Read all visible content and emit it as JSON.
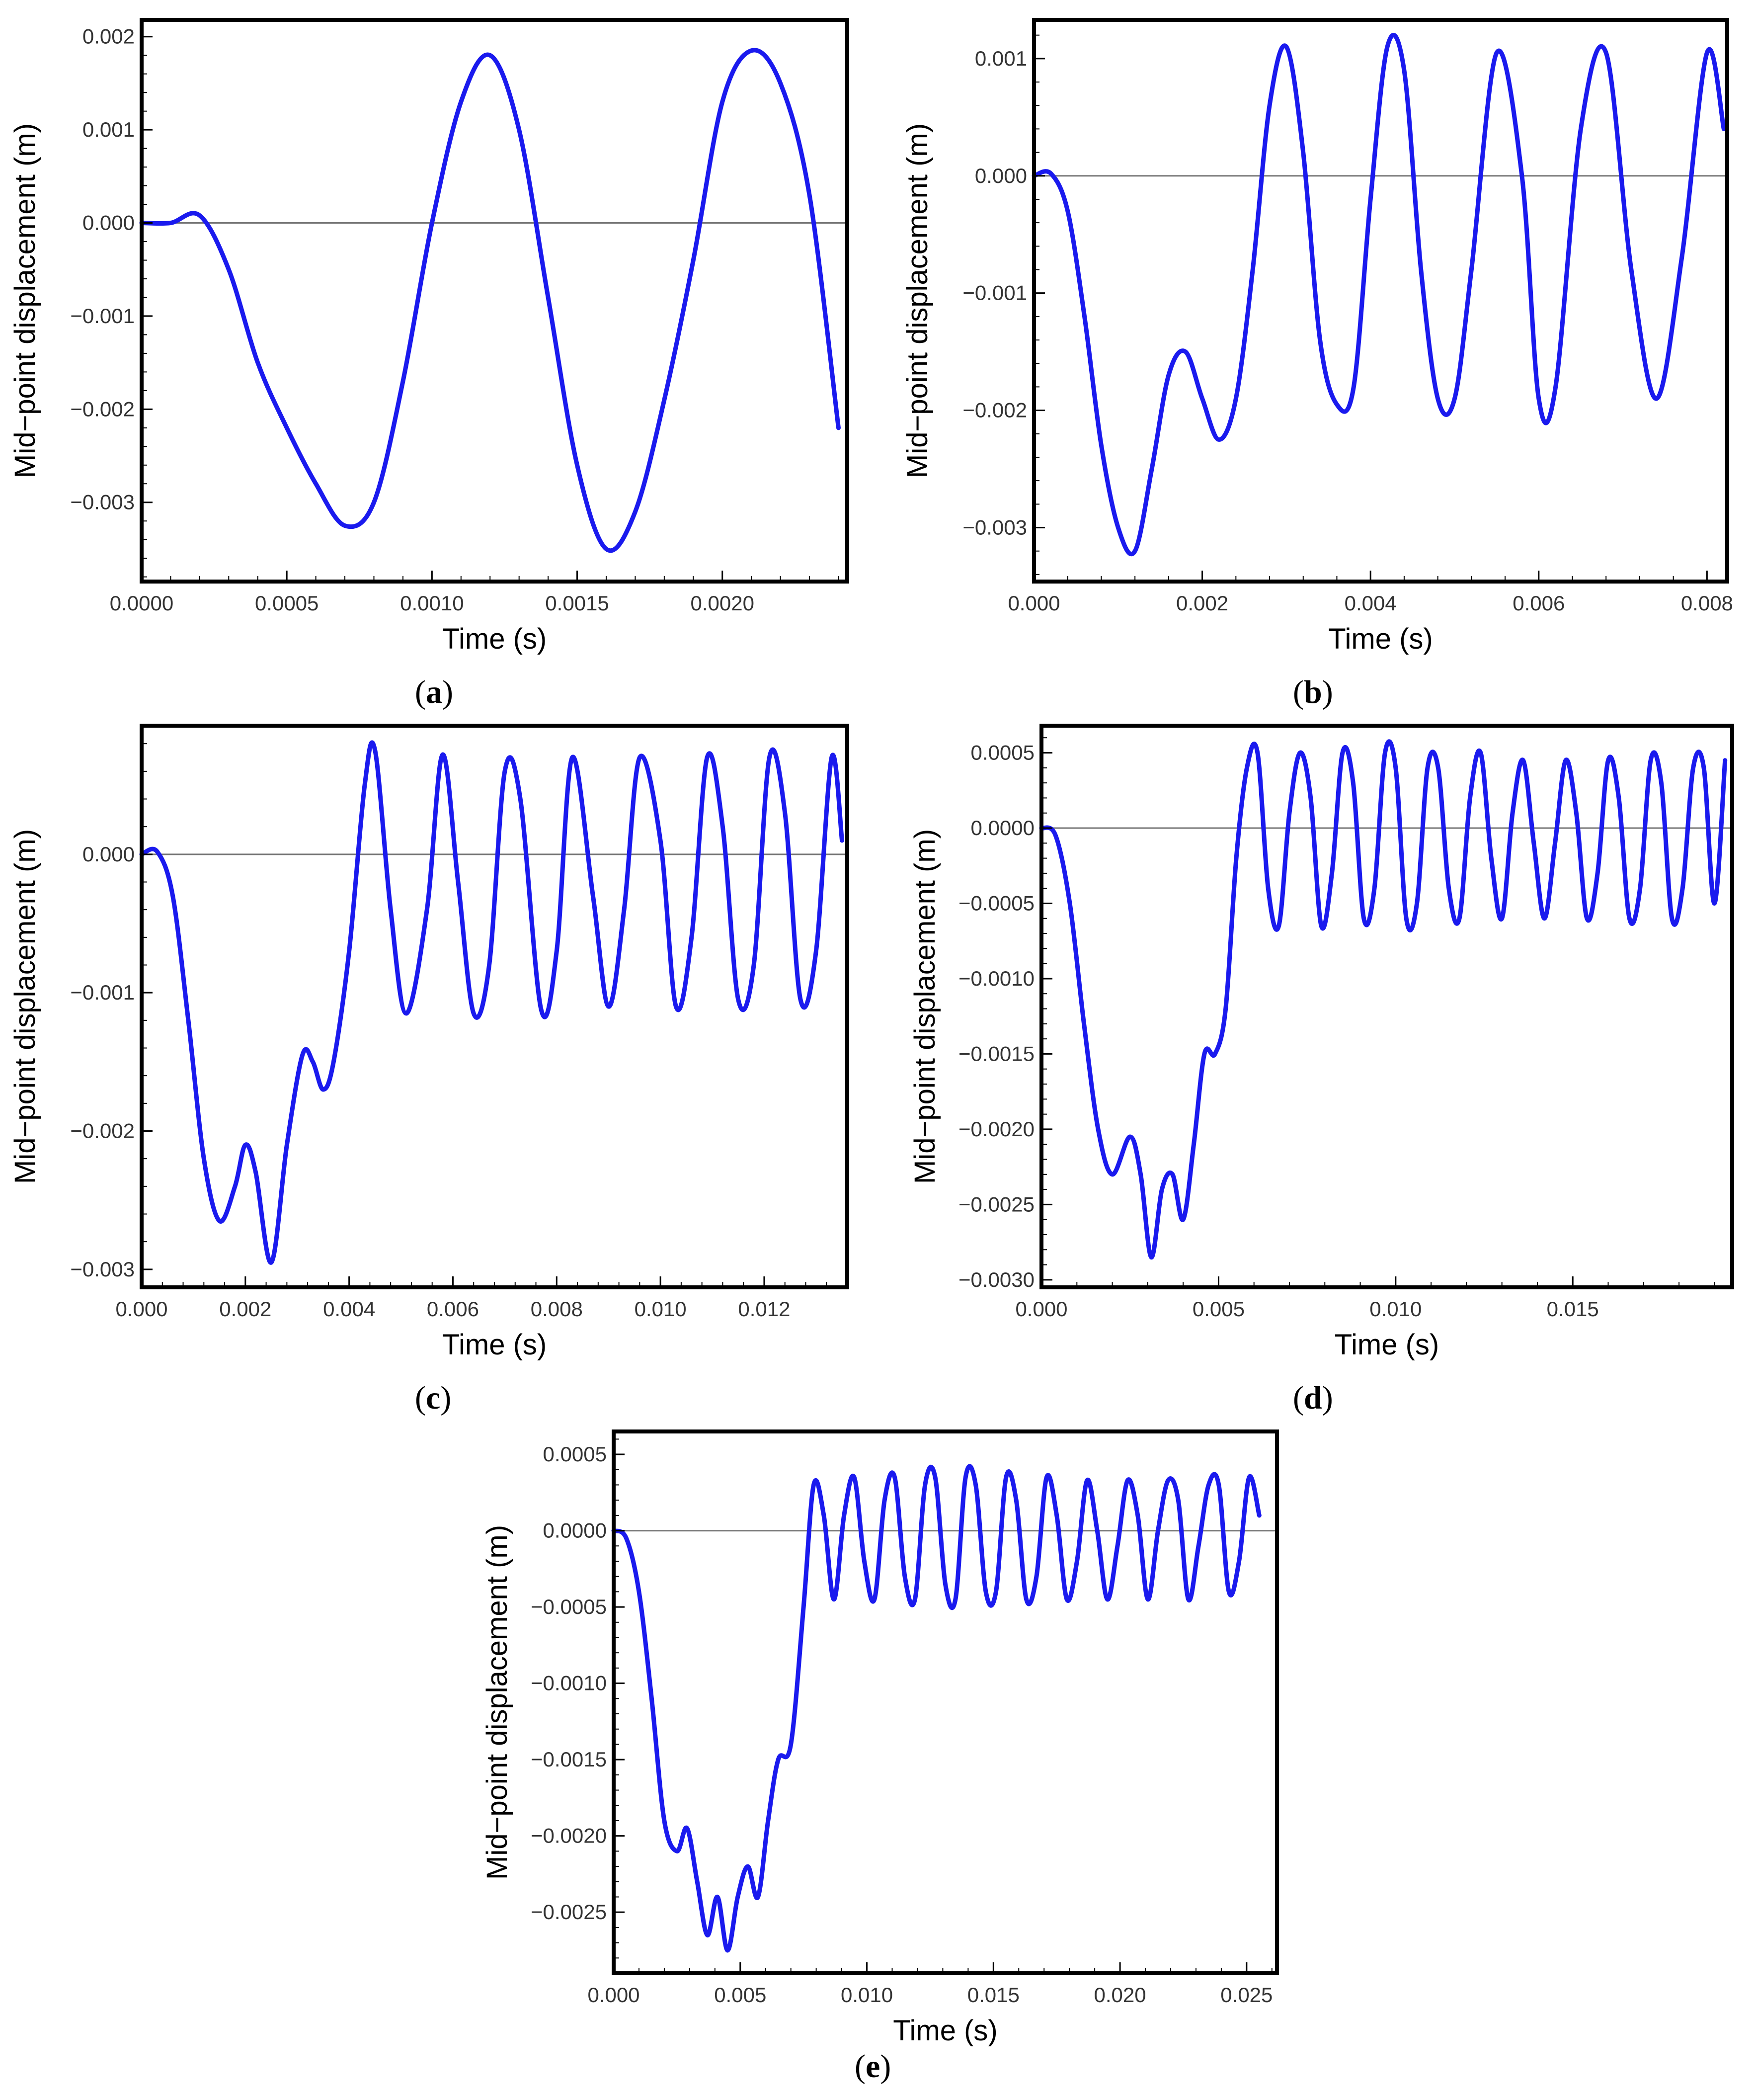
{
  "chart_data": [
    {
      "type": "line",
      "caption": "a",
      "xlabel": "Time (s)",
      "ylabel": "Mid−point displacement (m)",
      "xlim": [
        0,
        0.00243
      ],
      "ylim": [
        -0.00385,
        0.00218
      ],
      "x_ticks": [
        {
          "v": 0,
          "label": "0.0000"
        },
        {
          "v": 0.0005,
          "label": "0.0005"
        },
        {
          "v": 0.001,
          "label": "0.0010"
        },
        {
          "v": 0.0015,
          "label": "0.0015"
        },
        {
          "v": 0.002,
          "label": "0.0020"
        }
      ],
      "y_ticks": [
        {
          "v": 0.002,
          "label": "0.002"
        },
        {
          "v": 0.001,
          "label": "0.001"
        },
        {
          "v": 0.0,
          "label": "0.000"
        },
        {
          "v": -0.001,
          "label": "−0.001"
        },
        {
          "v": -0.002,
          "label": "−0.002"
        },
        {
          "v": -0.003,
          "label": "−0.003"
        }
      ],
      "series": [
        {
          "color": "#1a1aee",
          "x": [
            0,
            0.0001,
            0.0002,
            0.0003,
            0.0004,
            0.0005,
            0.0006,
            0.0007,
            0.0008,
            0.0009,
            0.001,
            0.0011,
            0.0012,
            0.0013,
            0.0014,
            0.0015,
            0.0016,
            0.0017,
            0.0018,
            0.0019,
            0.002,
            0.0021,
            0.0022,
            0.0023,
            0.0024
          ],
          "y": [
            0,
            0,
            8e-05,
            -0.0005,
            -0.0015,
            -0.0022,
            -0.0028,
            -0.00325,
            -0.003,
            -0.0017,
            0,
            0.0013,
            0.0018,
            0.001,
            -0.0008,
            -0.0026,
            -0.0035,
            -0.0031,
            -0.0019,
            -0.0004,
            0.0013,
            0.00185,
            0.0015,
            0.0003,
            -0.0022
          ]
        }
      ]
    },
    {
      "type": "line",
      "caption": "b",
      "xlabel": "Time (s)",
      "ylabel": "Mid−point displacement (m)",
      "xlim": [
        0,
        0.00824
      ],
      "ylim": [
        -0.00346,
        0.00133
      ],
      "x_ticks": [
        {
          "v": 0,
          "label": "0.000"
        },
        {
          "v": 0.002,
          "label": "0.002"
        },
        {
          "v": 0.004,
          "label": "0.004"
        },
        {
          "v": 0.006,
          "label": "0.006"
        },
        {
          "v": 0.008,
          "label": "0.008"
        }
      ],
      "y_ticks": [
        {
          "v": 0.001,
          "label": "0.001"
        },
        {
          "v": 0.0,
          "label": "0.000"
        },
        {
          "v": -0.001,
          "label": "−0.001"
        },
        {
          "v": -0.002,
          "label": "−0.002"
        },
        {
          "v": -0.003,
          "label": "−0.003"
        }
      ],
      "series": [
        {
          "color": "#1a1aee",
          "x": [
            0,
            0.0002,
            0.0004,
            0.0006,
            0.0008,
            0.001,
            0.0012,
            0.0014,
            0.0016,
            0.0018,
            0.002,
            0.0022,
            0.0024,
            0.0026,
            0.0028,
            0.003,
            0.0032,
            0.0034,
            0.0036,
            0.0038,
            0.004,
            0.0042,
            0.0044,
            0.0046,
            0.0048,
            0.005,
            0.0052,
            0.0055,
            0.0058,
            0.006,
            0.0062,
            0.0065,
            0.0068,
            0.0071,
            0.0074,
            0.0077,
            0.008,
            0.0082
          ],
          "y": [
            0,
            2e-05,
            -0.0003,
            -0.0012,
            -0.0023,
            -0.003,
            -0.0032,
            -0.0025,
            -0.0017,
            -0.0015,
            -0.0019,
            -0.00225,
            -0.0019,
            -0.0008,
            0.0006,
            0.0011,
            0.0002,
            -0.0014,
            -0.00195,
            -0.0018,
            -0.0002,
            0.0011,
            0.0009,
            -0.0008,
            -0.0019,
            -0.0019,
            -0.0008,
            0.00105,
            0.0,
            -0.0019,
            -0.0018,
            0.0004,
            0.00105,
            -0.0008,
            -0.0019,
            -0.0007,
            0.00105,
            0.0004
          ]
        }
      ]
    },
    {
      "type": "line",
      "caption": "c",
      "xlabel": "Time (s)",
      "ylabel": "Mid−point displacement (m)",
      "xlim": [
        0,
        0.0136
      ],
      "ylim": [
        -0.00313,
        0.00093
      ],
      "x_ticks": [
        {
          "v": 0,
          "label": "0.000"
        },
        {
          "v": 0.002,
          "label": "0.002"
        },
        {
          "v": 0.004,
          "label": "0.004"
        },
        {
          "v": 0.006,
          "label": "0.006"
        },
        {
          "v": 0.008,
          "label": "0.008"
        },
        {
          "v": 0.01,
          "label": "0.010"
        },
        {
          "v": 0.012,
          "label": "0.012"
        }
      ],
      "y_ticks": [
        {
          "v": 0.0,
          "label": "0.000"
        },
        {
          "v": -0.001,
          "label": "−0.001"
        },
        {
          "v": -0.002,
          "label": "−0.002"
        },
        {
          "v": -0.003,
          "label": "−0.003"
        }
      ],
      "series": [
        {
          "color": "#1a1aee",
          "x": [
            0,
            0.0003,
            0.0006,
            0.0009,
            0.0012,
            0.0015,
            0.0018,
            0.002,
            0.0022,
            0.0025,
            0.0028,
            0.0031,
            0.0033,
            0.0035,
            0.0037,
            0.004,
            0.0043,
            0.0045,
            0.0048,
            0.0051,
            0.0055,
            0.0058,
            0.0061,
            0.0064,
            0.0067,
            0.007,
            0.0073,
            0.0077,
            0.008,
            0.0083,
            0.0087,
            0.009,
            0.0093,
            0.0096,
            0.01,
            0.0103,
            0.0106,
            0.0109,
            0.0112,
            0.0115,
            0.0118,
            0.0121,
            0.0124,
            0.0127,
            0.013,
            0.0133,
            0.0135
          ],
          "y": [
            0,
            2e-05,
            -0.0003,
            -0.0012,
            -0.0022,
            -0.00265,
            -0.0024,
            -0.0021,
            -0.0023,
            -0.00295,
            -0.0021,
            -0.00145,
            -0.0015,
            -0.0017,
            -0.0015,
            -0.0007,
            0.0005,
            0.00075,
            -0.0004,
            -0.00115,
            -0.0004,
            0.00072,
            -0.0002,
            -0.00115,
            -0.0008,
            0.0006,
            0.0004,
            -0.00112,
            -0.0007,
            0.0007,
            -0.0003,
            -0.0011,
            -0.0004,
            0.0007,
            0.0001,
            -0.0011,
            -0.0006,
            0.0007,
            0.0002,
            -0.00105,
            -0.0008,
            0.0007,
            0.0003,
            -0.00105,
            -0.0007,
            0.0007,
            0.0001
          ]
        }
      ]
    },
    {
      "type": "line",
      "caption": "d",
      "xlabel": "Time (s)",
      "ylabel": "Mid−point displacement (m)",
      "xlim": [
        0,
        0.0195
      ],
      "ylim": [
        -0.00305,
        0.00068
      ],
      "x_ticks": [
        {
          "v": 0,
          "label": "0.000"
        },
        {
          "v": 0.005,
          "label": "0.005"
        },
        {
          "v": 0.01,
          "label": "0.010"
        },
        {
          "v": 0.015,
          "label": "0.015"
        }
      ],
      "y_ticks": [
        {
          "v": 0.0005,
          "label": "0.0005"
        },
        {
          "v": 0.0,
          "label": "0.0000"
        },
        {
          "v": -0.0005,
          "label": "−0.0005"
        },
        {
          "v": -0.001,
          "label": "−0.0010"
        },
        {
          "v": -0.0015,
          "label": "−0.0015"
        },
        {
          "v": -0.002,
          "label": "−0.0020"
        },
        {
          "v": -0.0025,
          "label": "−0.0025"
        },
        {
          "v": -0.003,
          "label": "−0.0030"
        }
      ],
      "series": [
        {
          "color": "#1a1aee",
          "x": [
            0,
            0.0004,
            0.0008,
            0.0012,
            0.0016,
            0.002,
            0.0025,
            0.0028,
            0.0031,
            0.0034,
            0.0037,
            0.004,
            0.0043,
            0.0046,
            0.0049,
            0.0052,
            0.0055,
            0.0058,
            0.0061,
            0.0064,
            0.0067,
            0.007,
            0.0073,
            0.0076,
            0.0079,
            0.0082,
            0.0085,
            0.0088,
            0.0091,
            0.0094,
            0.0097,
            0.01,
            0.0103,
            0.0106,
            0.0109,
            0.0112,
            0.0115,
            0.0118,
            0.0121,
            0.0124,
            0.0127,
            0.013,
            0.0133,
            0.0136,
            0.0139,
            0.0142,
            0.0145,
            0.0148,
            0.0151,
            0.0154,
            0.0157,
            0.016,
            0.0163,
            0.0166,
            0.0169,
            0.0172,
            0.0175,
            0.0178,
            0.0181,
            0.0184,
            0.0187,
            0.019,
            0.0193
          ],
          "y": [
            0,
            -5e-05,
            -0.0005,
            -0.0013,
            -0.002,
            -0.0023,
            -0.00205,
            -0.0023,
            -0.00285,
            -0.0024,
            -0.0023,
            -0.0026,
            -0.0021,
            -0.0015,
            -0.0015,
            -0.0012,
            -0.0002,
            0.0004,
            0.0005,
            -0.0004,
            -0.00065,
            0.0001,
            0.0005,
            0.0002,
            -0.00065,
            -0.0003,
            0.0005,
            0.0003,
            -0.0006,
            -0.0004,
            0.0005,
            0.0004,
            -0.0006,
            -0.0005,
            0.0004,
            0.0004,
            -0.0004,
            -0.0006,
            0.0002,
            0.0005,
            -0.0002,
            -0.0006,
            0.0001,
            0.00045,
            -0.0001,
            -0.0006,
            -0.0001,
            0.00045,
            0.0001,
            -0.0006,
            -0.0003,
            0.00045,
            0.0002,
            -0.0006,
            -0.0004,
            0.00045,
            0.0003,
            -0.0006,
            -0.0004,
            0.0004,
            0.0004,
            -0.0005,
            0.00045
          ]
        }
      ]
    },
    {
      "type": "line",
      "caption": "e",
      "xlabel": "Time (s)",
      "ylabel": "Mid−point displacement (m)",
      "xlim": [
        0,
        0.0262
      ],
      "ylim": [
        -0.0029,
        0.00065
      ],
      "x_ticks": [
        {
          "v": 0,
          "label": "0.000"
        },
        {
          "v": 0.005,
          "label": "0.005"
        },
        {
          "v": 0.01,
          "label": "0.010"
        },
        {
          "v": 0.015,
          "label": "0.015"
        },
        {
          "v": 0.02,
          "label": "0.020"
        },
        {
          "v": 0.025,
          "label": "0.025"
        }
      ],
      "y_ticks": [
        {
          "v": 0.0005,
          "label": "0.0005"
        },
        {
          "v": 0.0,
          "label": "0.0000"
        },
        {
          "v": -0.0005,
          "label": "−0.0005"
        },
        {
          "v": -0.001,
          "label": "−0.0010"
        },
        {
          "v": -0.0015,
          "label": "−0.0015"
        },
        {
          "v": -0.002,
          "label": "−0.0020"
        },
        {
          "v": -0.0025,
          "label": "−0.0025"
        }
      ],
      "series": [
        {
          "color": "#1a1aee",
          "x": [
            0,
            0.0005,
            0.001,
            0.0015,
            0.002,
            0.0025,
            0.0029,
            0.0033,
            0.0037,
            0.0041,
            0.0045,
            0.0049,
            0.0053,
            0.0057,
            0.0061,
            0.0065,
            0.007,
            0.0075,
            0.0079,
            0.0083,
            0.0087,
            0.0091,
            0.0095,
            0.0099,
            0.0103,
            0.0107,
            0.0111,
            0.0115,
            0.0119,
            0.0123,
            0.0127,
            0.0131,
            0.0135,
            0.0139,
            0.0143,
            0.0147,
            0.0151,
            0.0155,
            0.0159,
            0.0163,
            0.0167,
            0.0171,
            0.0175,
            0.0179,
            0.0183,
            0.0187,
            0.0191,
            0.0195,
            0.0199,
            0.0203,
            0.0207,
            0.0211,
            0.0215,
            0.0219,
            0.0223,
            0.0227,
            0.0231,
            0.0235,
            0.0239,
            0.0243,
            0.0247,
            0.0251,
            0.0255
          ],
          "y": [
            0,
            -5e-05,
            -0.0004,
            -0.0011,
            -0.0019,
            -0.0021,
            -0.00195,
            -0.0023,
            -0.00265,
            -0.0024,
            -0.00275,
            -0.0024,
            -0.0022,
            -0.0024,
            -0.0019,
            -0.0015,
            -0.0014,
            -0.0005,
            0.0003,
            0.0001,
            -0.00045,
            0.0001,
            0.00035,
            -0.0002,
            -0.00045,
            0.0002,
            0.00035,
            -0.0003,
            -0.00045,
            0.0003,
            0.00035,
            -0.00035,
            -0.00045,
            0.00035,
            0.0003,
            -0.0004,
            -0.0004,
            0.00035,
            0.0002,
            -0.00045,
            -0.0003,
            0.00035,
            0.0001,
            -0.00045,
            -0.0002,
            0.00033,
            0.0,
            -0.00045,
            -0.0001,
            0.00033,
            0.0001,
            -0.00045,
            0.0,
            0.00033,
            0.0002,
            -0.00045,
            -0.0001,
            0.0003,
            0.0003,
            -0.0004,
            -0.0002,
            0.00035,
            0.0001
          ]
        }
      ]
    }
  ]
}
